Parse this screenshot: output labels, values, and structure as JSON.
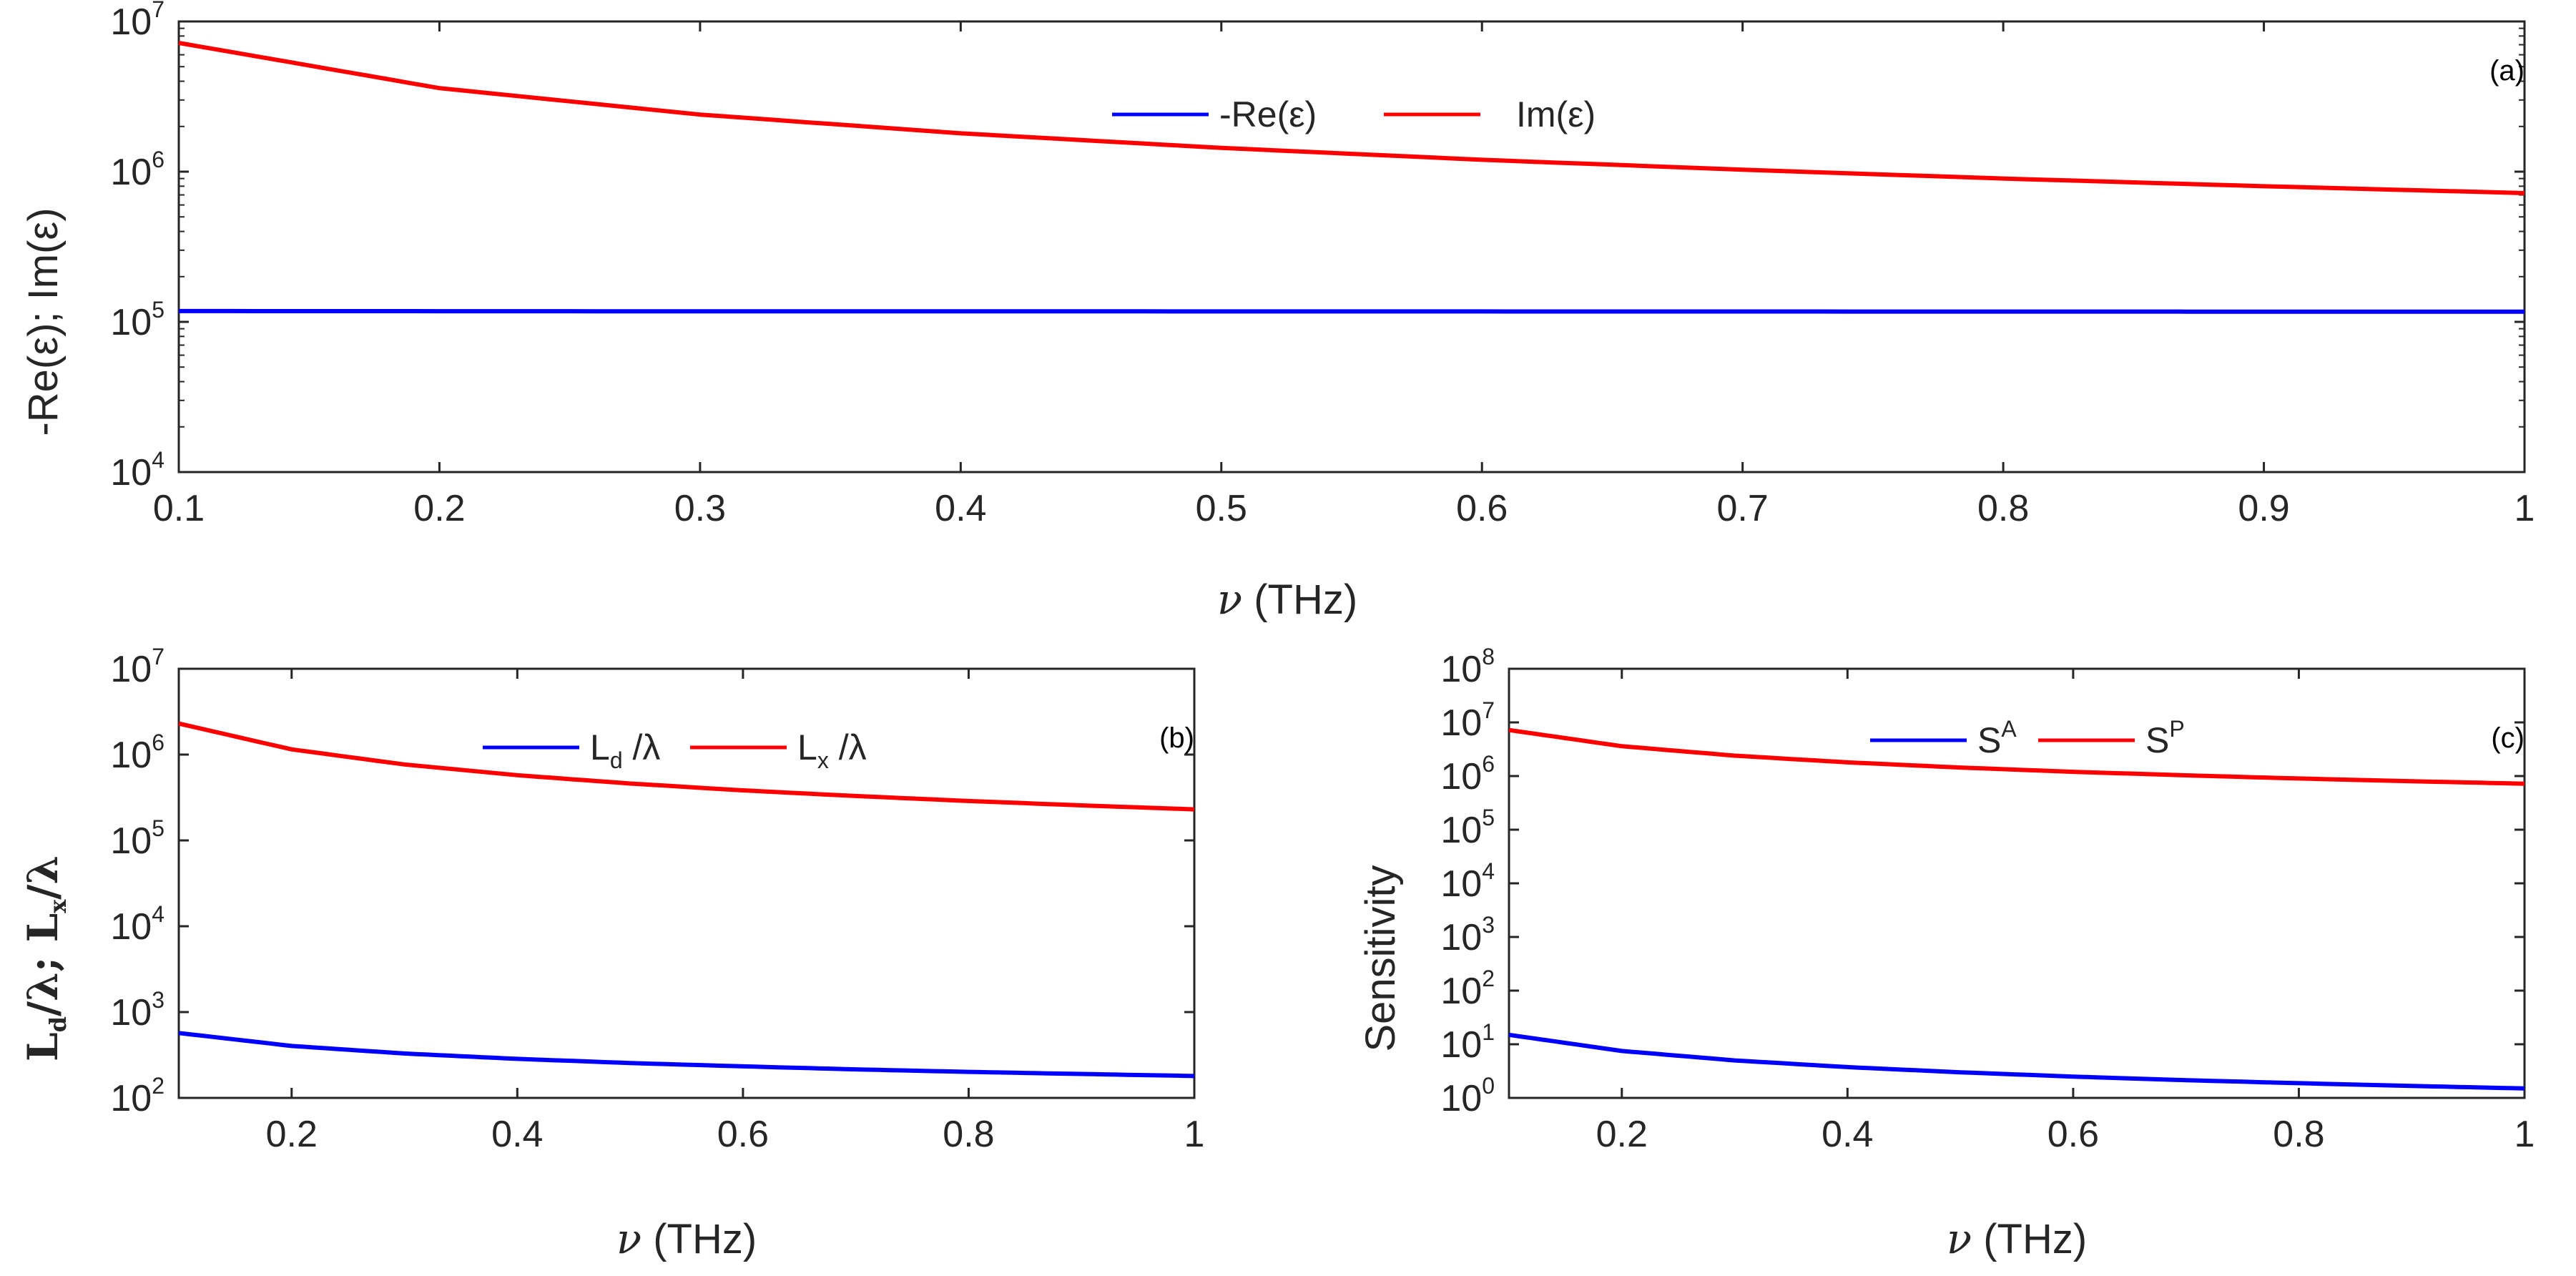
{
  "figure": {
    "line_colors": {
      "blue": "#0000ff",
      "red": "#ff0000",
      "axis": "#262626"
    }
  },
  "chart_data": [
    {
      "id": "a",
      "type": "line",
      "panel_tag": "(a)",
      "xscale": "linear",
      "yscale": "log",
      "xlim": [
        0.1,
        1
      ],
      "ylim": [
        10000,
        10000000
      ],
      "xticks": [
        0.1,
        0.2,
        0.3,
        0.4,
        0.5,
        0.6,
        0.7,
        0.8,
        0.9,
        1
      ],
      "xtick_labels": [
        "0.1",
        "0.2",
        "0.3",
        "0.4",
        "0.5",
        "0.6",
        "0.7",
        "0.8",
        "0.9",
        "1"
      ],
      "yticks_exp": [
        4,
        5,
        6,
        7
      ],
      "ytick_base": "10",
      "xlabel_symbol": "ν",
      "xlabel_unit": " (THz)",
      "ylabel": "-Re(ε); Im(ε)",
      "legend_position": "top-center",
      "series": [
        {
          "name": "-Re(ε)",
          "color": "#0000ff",
          "x": [
            0.1,
            0.2,
            0.3,
            0.4,
            0.5,
            0.6,
            0.7,
            0.8,
            0.9,
            1.0
          ],
          "values": [
            118000,
            117800,
            117600,
            117500,
            117400,
            117300,
            117200,
            117100,
            117000,
            116900
          ]
        },
        {
          "name": "Im(ε)",
          "color": "#ff0000",
          "x": [
            0.1,
            0.2,
            0.3,
            0.4,
            0.5,
            0.6,
            0.7,
            0.8,
            0.9,
            1.0
          ],
          "values": [
            7200000,
            3600000,
            2400000,
            1800000,
            1440000,
            1200000,
            1030000,
            900000,
            800000,
            720000
          ]
        }
      ]
    },
    {
      "id": "b",
      "type": "line",
      "panel_tag": "(b)",
      "xscale": "linear",
      "yscale": "log",
      "xlim": [
        0.1,
        1
      ],
      "ylim": [
        100,
        10000000
      ],
      "xticks": [
        0.2,
        0.4,
        0.6,
        0.8,
        1
      ],
      "xtick_labels": [
        "0.2",
        "0.4",
        "0.6",
        "0.8",
        "1"
      ],
      "yticks_exp": [
        2,
        3,
        4,
        5,
        6,
        7
      ],
      "ytick_base": "10",
      "xlabel_symbol": "ν",
      "xlabel_unit": " (THz)",
      "ylabel_main": "L",
      "ylabel_sub_d": "d",
      "ylabel_mid": "/λ; L",
      "ylabel_sub_x": "x",
      "ylabel_end": "/λ",
      "legend_position": "top-center",
      "series": [
        {
          "name": "L",
          "name_sub": "d",
          "name_tail": " /λ",
          "color": "#0000ff",
          "x": [
            0.1,
            0.2,
            0.3,
            0.4,
            0.5,
            0.6,
            0.7,
            0.8,
            0.9,
            1.0
          ],
          "values": [
            570,
            403,
            329,
            285,
            255,
            233,
            215,
            201,
            190,
            180
          ]
        },
        {
          "name": "L",
          "name_sub": "x",
          "name_tail": " /λ",
          "color": "#ff0000",
          "x": [
            0.1,
            0.2,
            0.3,
            0.4,
            0.5,
            0.6,
            0.7,
            0.8,
            0.9,
            1.0
          ],
          "values": [
            2300000,
            1150000,
            767000,
            575000,
            460000,
            383000,
            329000,
            288000,
            256000,
            230000
          ]
        }
      ]
    },
    {
      "id": "c",
      "type": "line",
      "panel_tag": "(c)",
      "xscale": "linear",
      "yscale": "log",
      "xlim": [
        0.1,
        1
      ],
      "ylim": [
        1,
        100000000
      ],
      "xticks": [
        0.2,
        0.4,
        0.6,
        0.8,
        1
      ],
      "xtick_labels": [
        "0.2",
        "0.4",
        "0.6",
        "0.8",
        "1"
      ],
      "yticks_exp": [
        0,
        1,
        2,
        3,
        4,
        5,
        6,
        7,
        8
      ],
      "ytick_base": "10",
      "xlabel_symbol": "ν",
      "xlabel_unit": " (THz)",
      "ylabel": "Sensitivity",
      "legend_position": "top-center",
      "series": [
        {
          "name": "S",
          "name_sup": "A",
          "color": "#0000ff",
          "x": [
            0.1,
            0.2,
            0.3,
            0.4,
            0.5,
            0.6,
            0.7,
            0.8,
            0.9,
            1.0
          ],
          "values": [
            15,
            7.5,
            5,
            3.75,
            3,
            2.5,
            2.14,
            1.88,
            1.67,
            1.5
          ]
        },
        {
          "name": "S",
          "name_sup": "P",
          "color": "#ff0000",
          "x": [
            0.1,
            0.2,
            0.3,
            0.4,
            0.5,
            0.6,
            0.7,
            0.8,
            0.9,
            1.0
          ],
          "values": [
            7200000,
            3600000,
            2400000,
            1800000,
            1440000,
            1200000,
            1030000,
            900000,
            800000,
            720000
          ]
        }
      ]
    }
  ]
}
